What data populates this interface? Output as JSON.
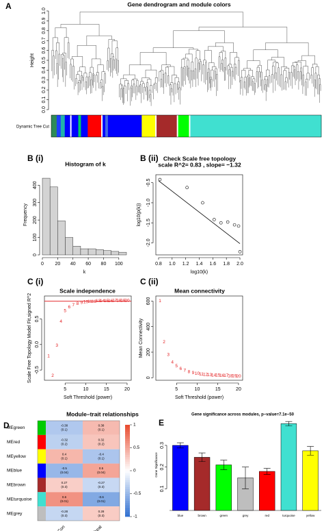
{
  "chart_data": [
    {
      "type": "dendrogram",
      "panel": "A",
      "title": "Gene dendrogram and module colors",
      "ylabel": "Height",
      "colorbar_label": "Dynamic Tree Cut",
      "ylim": [
        0,
        1
      ],
      "yticks": [
        {
          "value": 0,
          "label": "0.0"
        },
        0.1,
        0.2,
        0.3,
        0.4,
        0.5,
        0.6,
        0.7,
        0.8,
        0.9,
        {
          "value": 1,
          "label": "1.0"
        }
      ]
    },
    {
      "type": "histogram",
      "panel": "B (i)",
      "title": "Histogram of k",
      "xlabel": "k",
      "ylabel": "Frequency",
      "color": "#d3d3d3",
      "bins": [
        0,
        10,
        20,
        30,
        40,
        50,
        60,
        70,
        80,
        90,
        100,
        110
      ],
      "counts": [
        440,
        390,
        195,
        100,
        50,
        35,
        35,
        30,
        25,
        20,
        15
      ],
      "xlim": [
        0,
        110
      ],
      "xticks": [
        0,
        20,
        40,
        60,
        80,
        100
      ],
      "ylim": [
        0,
        460
      ],
      "yticks": [
        0,
        100,
        200,
        300,
        400
      ]
    },
    {
      "type": "scatter",
      "panel": "B (ii)",
      "title": "Check Scale free topology",
      "subtitle": "scale R^2= 0.83 , slope= −1.32",
      "xlabel": "log10(k)",
      "ylabel": "log10(p(k))",
      "x": [
        0.82,
        1.22,
        1.45,
        1.62,
        1.72,
        1.82,
        1.92,
        1.98,
        2.0
      ],
      "y": [
        -0.42,
        -0.62,
        -1.0,
        -1.42,
        -1.5,
        -1.48,
        -1.55,
        -1.58,
        -2.22
      ],
      "fit_line": {
        "x": [
          0.8,
          2.0
        ],
        "y": [
          -0.45,
          -2.02
        ]
      },
      "xlim": [
        0.76,
        2.04
      ],
      "xticks": [
        0.8,
        {
          "value": 1,
          "label": "1.0"
        },
        1.2,
        1.4,
        1.6,
        1.8,
        {
          "value": 2,
          "label": "2.0"
        }
      ],
      "ylim": [
        -2.3,
        -0.3
      ],
      "yticks": [
        {
          "value": -2,
          "label": "-2.0"
        },
        -1.5,
        {
          "value": -1,
          "label": "-1.0"
        },
        -0.5
      ]
    },
    {
      "type": "powerplot",
      "panel": "C (i)",
      "title": "Scale independence",
      "xlabel": "Soft Threshold (power)",
      "ylabel": "Scale Free Topology Model Fit,signed R^2",
      "color": "#e31a1c",
      "x": [
        1,
        2,
        3,
        4,
        5,
        6,
        7,
        8,
        9,
        10,
        11,
        12,
        13,
        14,
        15,
        16,
        17,
        18,
        19,
        20
      ],
      "values": [
        -0.23,
        -0.61,
        -0.02,
        0.45,
        0.66,
        0.73,
        0.77,
        0.8,
        0.82,
        0.83,
        0.84,
        0.84,
        0.85,
        0.85,
        0.85,
        0.85,
        0.86,
        0.86,
        0.86,
        0.86
      ],
      "hline": 0.85,
      "xlim": [
        0,
        21
      ],
      "xticks": [
        5,
        10,
        15,
        20
      ],
      "ylim": [
        -0.7,
        0.95
      ],
      "yticks": [
        -0.5,
        {
          "value": 0,
          "label": "0.0"
        },
        0.5
      ]
    },
    {
      "type": "powerplot",
      "panel": "C (ii)",
      "title": "Mean connectivity",
      "xlabel": "Soft Threshold (power)",
      "ylabel": "Mean Connectivity",
      "color": "#e31a1c",
      "x": [
        1,
        2,
        3,
        4,
        5,
        6,
        7,
        8,
        9,
        10,
        11,
        12,
        13,
        14,
        15,
        16,
        17,
        18,
        19,
        20
      ],
      "values": [
        600,
        280,
        180,
        120,
        90,
        70,
        55,
        45,
        38,
        32,
        28,
        25,
        22,
        20,
        18,
        16,
        15,
        14,
        13,
        12
      ],
      "xlim": [
        0,
        21
      ],
      "xticks": [
        5,
        10,
        15,
        20
      ],
      "ylim": [
        -20,
        640
      ],
      "yticks": [
        0,
        200,
        400,
        600
      ]
    },
    {
      "type": "heatmap",
      "panel": "D",
      "title": "Module–trait relationships",
      "rows": [
        "MEgreen",
        "MEred",
        "MEyellow",
        "MEblue",
        "MEbrown",
        "MEturquoise",
        "MEgrey"
      ],
      "row_colors": [
        "#00cc00",
        "#ff0000",
        "#ffff00",
        "#0000ff",
        "#a52a2a",
        "#40e0d0",
        "#bebebe"
      ],
      "columns": [
        "Con",
        "Treat"
      ],
      "values": [
        [
          -0.38,
          0.38
        ],
        [
          -0.32,
          0.32
        ],
        [
          0.4,
          -0.4
        ],
        [
          -0.5,
          0.5
        ],
        [
          0.27,
          -0.27
        ],
        [
          0.6,
          -0.6
        ],
        [
          -0.28,
          0.28
        ]
      ],
      "pvalue_labels": [
        [
          "(0.1)",
          "(0.1)"
        ],
        [
          "(0.2)",
          "(0.2)"
        ],
        [
          "(0.1)",
          "(0.1)"
        ],
        [
          "(0.04)",
          "(0.04)"
        ],
        [
          "(0.3)",
          "(0.3)"
        ],
        [
          "(0.01)",
          "(0.01)"
        ],
        [
          "(0.3)",
          "(0.3)"
        ]
      ],
      "colors": [
        "#2f6fd1",
        "#ffffff",
        "#e84a2e"
      ],
      "colorbar_lim": [
        -1,
        1
      ],
      "colorbar_ticks": [
        -1,
        -0.5,
        0,
        0.5,
        1
      ]
    },
    {
      "type": "bar",
      "panel": "E",
      "title": "Gene significance across modules, p−value=7.1e−50",
      "ylabel": "Gene Significance",
      "categories": [
        "blue",
        "brown",
        "green",
        "grey",
        "red",
        "turquoise",
        "yellow"
      ],
      "colors": [
        "#0000ff",
        "#a52a2a",
        "#00ff00",
        "#bebebe",
        "#ff0000",
        "#40e0d0",
        "#ffff00"
      ],
      "values": [
        0.3,
        0.245,
        0.21,
        0.15,
        0.18,
        0.4,
        0.275
      ],
      "errors": [
        0.012,
        0.02,
        0.022,
        0.05,
        0.014,
        0.01,
        0.02
      ],
      "ylim": [
        0,
        0.42
      ],
      "yticks": [
        0.1,
        0.2,
        0.3
      ]
    }
  ]
}
